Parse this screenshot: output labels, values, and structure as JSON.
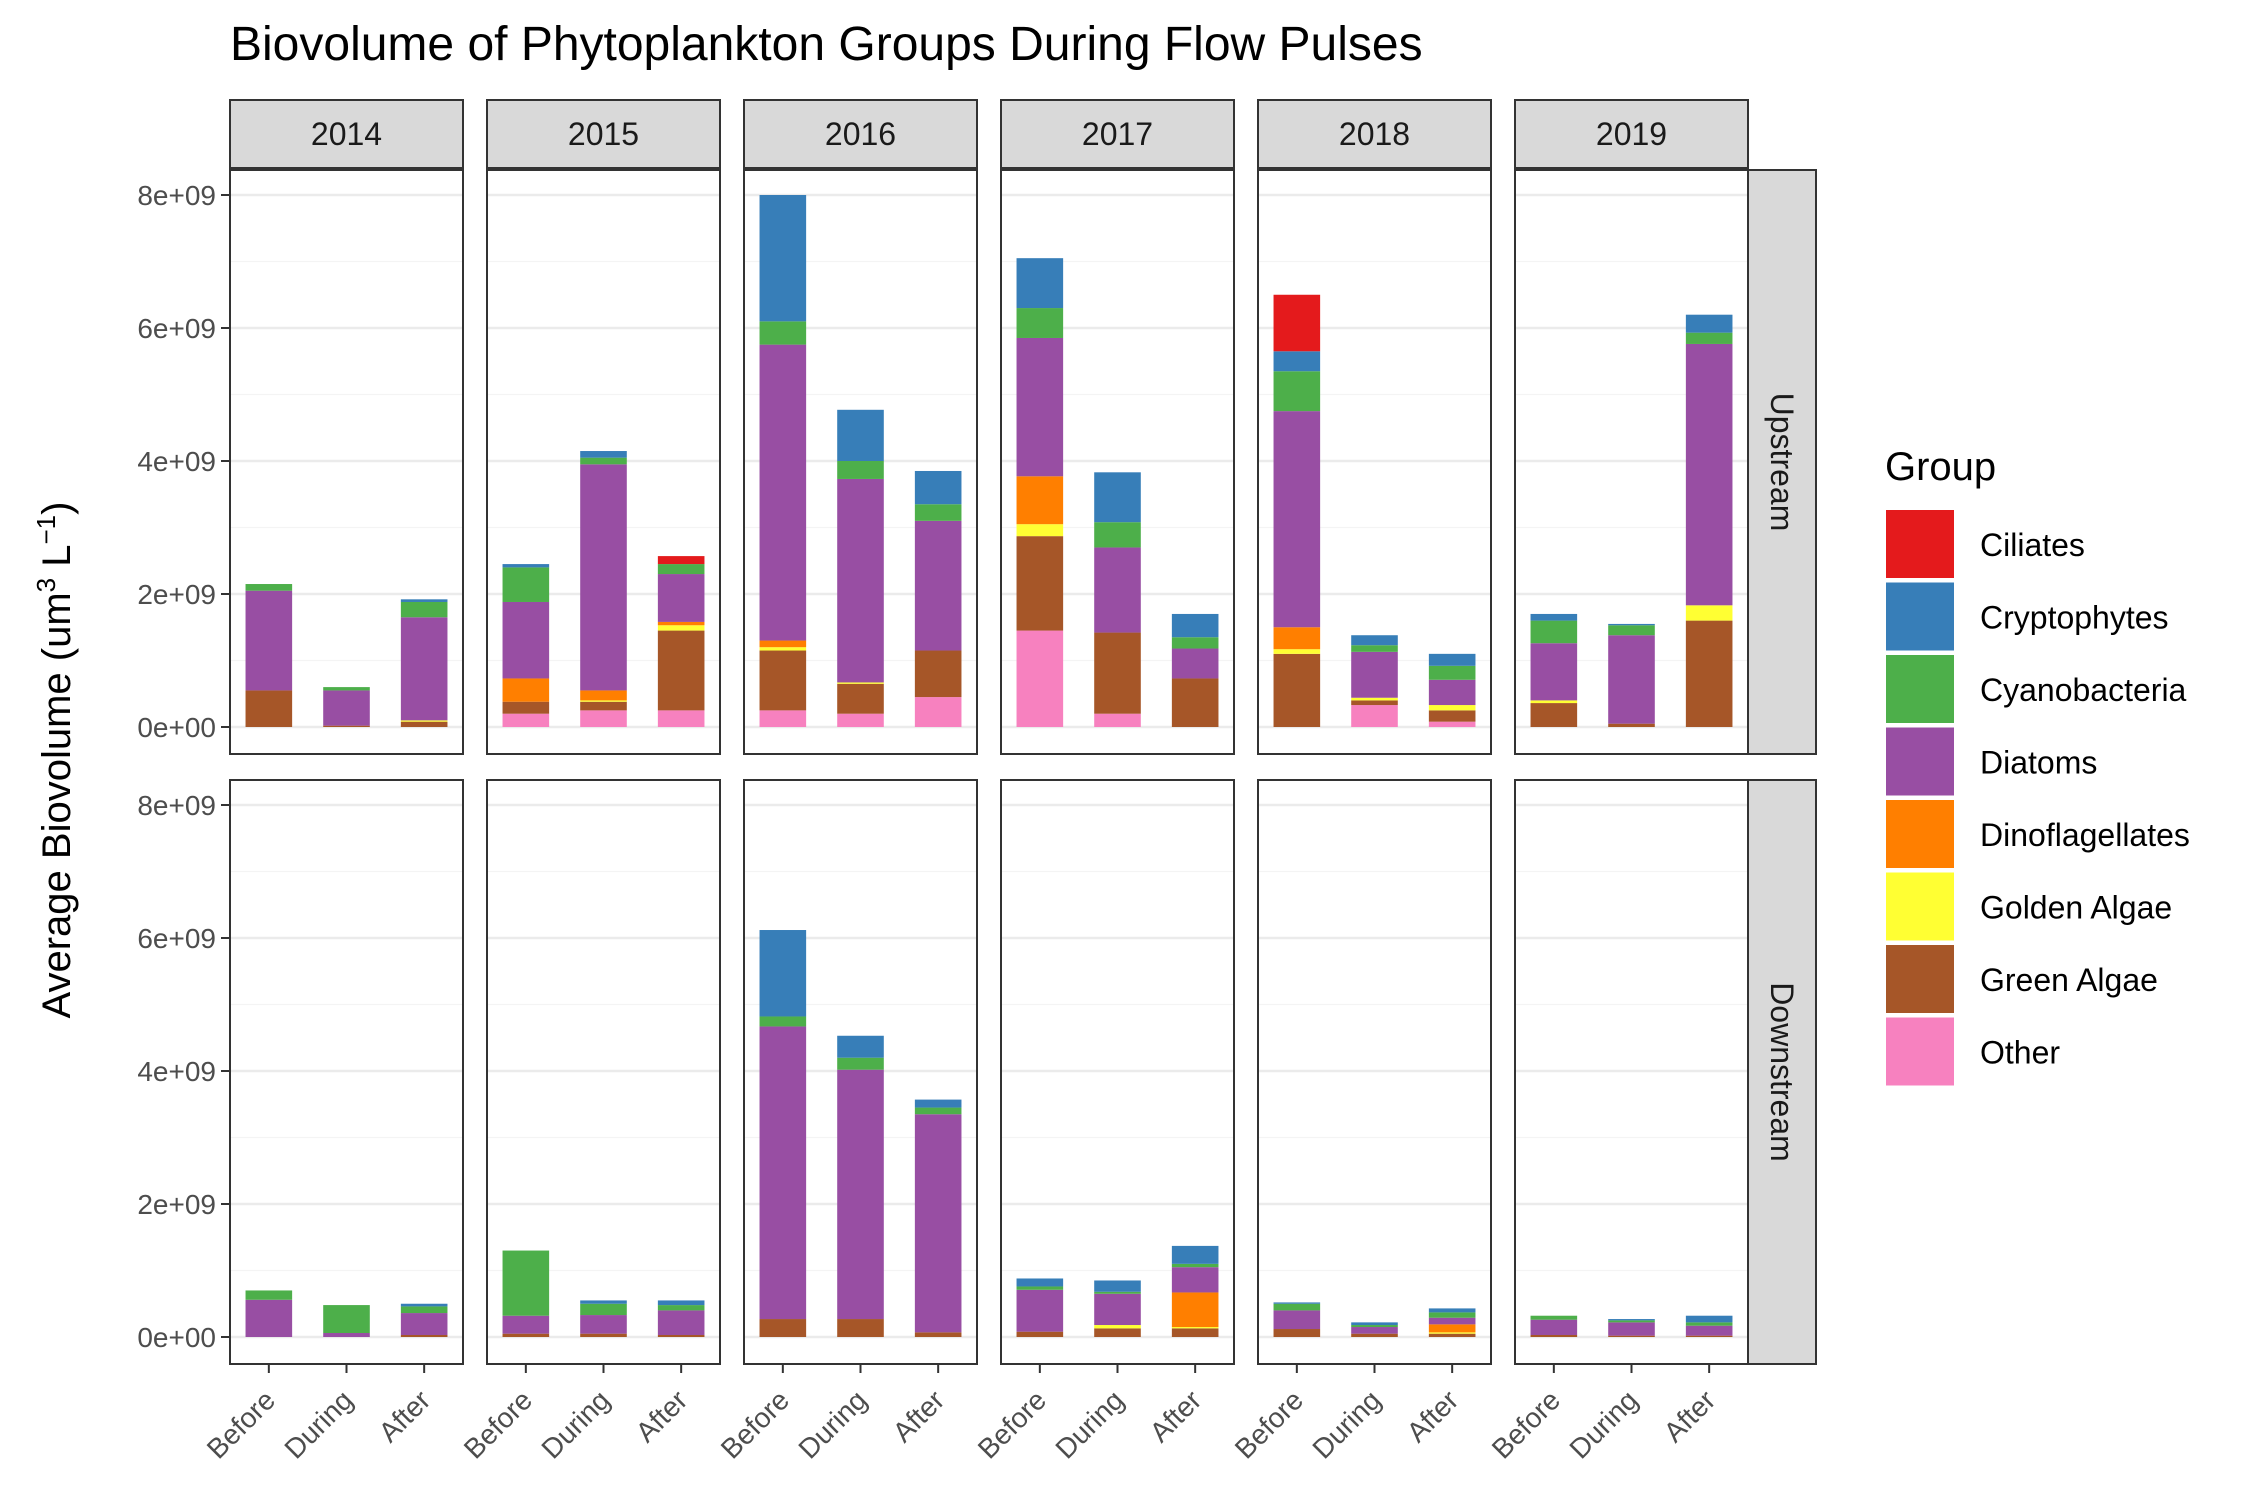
{
  "chart_data": {
    "type": "bar",
    "stacked": true,
    "title": "Biovolume of Phytoplankton Groups During Flow Pulses",
    "ylabel": "Average Biovolume (um³ L⁻¹)",
    "ylabel_parts": {
      "main": "Average Biovolume (um",
      "sup1": "3",
      "mid": " L",
      "sup2": "−1",
      "end": ")"
    },
    "ylim": [
      0,
      8000000000
    ],
    "yticks": [
      0,
      2000000000,
      4000000000,
      6000000000,
      8000000000
    ],
    "ytick_labels": [
      "0e+00",
      "2e+09",
      "4e+09",
      "6e+09",
      "8e+09"
    ],
    "grid": true,
    "legend_position": "right",
    "legend_title": "Group",
    "categories": [
      "Before",
      "During",
      "After"
    ],
    "groups": [
      "Ciliates",
      "Cryptophytes",
      "Cyanobacteria",
      "Diatoms",
      "Dinoflagellates",
      "Golden Algae",
      "Green Algae",
      "Other"
    ],
    "colors": {
      "Ciliates": "#E41A1C",
      "Cryptophytes": "#377EB8",
      "Cyanobacteria": "#4DAF4A",
      "Diatoms": "#984EA3",
      "Dinoflagellates": "#FF7F00",
      "Golden Algae": "#FFFF33",
      "Green Algae": "#A65628",
      "Other": "#F781BF"
    },
    "columns": [
      "2014",
      "2015",
      "2016",
      "2017",
      "2018",
      "2019"
    ],
    "rows": [
      "Upstream",
      "Downstream"
    ],
    "stack_order_bottom_to_top": [
      "Other",
      "Green Algae",
      "Golden Algae",
      "Dinoflagellates",
      "Diatoms",
      "Cyanobacteria",
      "Cryptophytes",
      "Ciliates"
    ],
    "panels": [
      {
        "row": "Upstream",
        "column": "2014",
        "bars": [
          {
            "x": "Before",
            "Other": 0,
            "Green Algae": 550000000,
            "Golden Algae": 0,
            "Dinoflagellates": 0,
            "Diatoms": 1500000000,
            "Cyanobacteria": 100000000,
            "Cryptophytes": 0,
            "Ciliates": 0
          },
          {
            "x": "During",
            "Other": 0,
            "Green Algae": 20000000,
            "Golden Algae": 0,
            "Dinoflagellates": 0,
            "Diatoms": 530000000,
            "Cyanobacteria": 50000000,
            "Cryptophytes": 0,
            "Ciliates": 0
          },
          {
            "x": "After",
            "Other": 0,
            "Green Algae": 80000000,
            "Golden Algae": 20000000,
            "Dinoflagellates": 0,
            "Diatoms": 1550000000,
            "Cyanobacteria": 230000000,
            "Cryptophytes": 40000000,
            "Ciliates": 0
          }
        ]
      },
      {
        "row": "Upstream",
        "column": "2015",
        "bars": [
          {
            "x": "Before",
            "Other": 200000000,
            "Green Algae": 180000000,
            "Golden Algae": 0,
            "Dinoflagellates": 350000000,
            "Diatoms": 1150000000,
            "Cyanobacteria": 520000000,
            "Cryptophytes": 50000000,
            "Ciliates": 0
          },
          {
            "x": "During",
            "Other": 250000000,
            "Green Algae": 130000000,
            "Golden Algae": 20000000,
            "Dinoflagellates": 150000000,
            "Diatoms": 3400000000,
            "Cyanobacteria": 100000000,
            "Cryptophytes": 100000000,
            "Ciliates": 0
          },
          {
            "x": "After",
            "Other": 250000000,
            "Green Algae": 1200000000,
            "Golden Algae": 80000000,
            "Dinoflagellates": 50000000,
            "Diatoms": 720000000,
            "Cyanobacteria": 150000000,
            "Cryptophytes": 0,
            "Ciliates": 120000000
          }
        ]
      },
      {
        "row": "Upstream",
        "column": "2016",
        "bars": [
          {
            "x": "Before",
            "Other": 250000000,
            "Green Algae": 900000000,
            "Golden Algae": 50000000,
            "Dinoflagellates": 100000000,
            "Diatoms": 4450000000,
            "Cyanobacteria": 350000000,
            "Cryptophytes": 1900000000,
            "Ciliates": 0
          },
          {
            "x": "During",
            "Other": 200000000,
            "Green Algae": 450000000,
            "Golden Algae": 20000000,
            "Dinoflagellates": 0,
            "Diatoms": 3060000000,
            "Cyanobacteria": 270000000,
            "Cryptophytes": 770000000,
            "Ciliates": 0
          },
          {
            "x": "After",
            "Other": 450000000,
            "Green Algae": 700000000,
            "Golden Algae": 0,
            "Dinoflagellates": 0,
            "Diatoms": 1950000000,
            "Cyanobacteria": 250000000,
            "Cryptophytes": 500000000,
            "Ciliates": 0
          }
        ]
      },
      {
        "row": "Upstream",
        "column": "2017",
        "bars": [
          {
            "x": "Before",
            "Other": 1450000000,
            "Green Algae": 1420000000,
            "Golden Algae": 180000000,
            "Dinoflagellates": 720000000,
            "Diatoms": 2080000000,
            "Cyanobacteria": 450000000,
            "Cryptophytes": 750000000,
            "Ciliates": 0
          },
          {
            "x": "During",
            "Other": 200000000,
            "Green Algae": 1220000000,
            "Golden Algae": 0,
            "Dinoflagellates": 0,
            "Diatoms": 1280000000,
            "Cyanobacteria": 380000000,
            "Cryptophytes": 750000000,
            "Ciliates": 0
          },
          {
            "x": "After",
            "Other": 0,
            "Green Algae": 730000000,
            "Golden Algae": 0,
            "Dinoflagellates": 0,
            "Diatoms": 450000000,
            "Cyanobacteria": 170000000,
            "Cryptophytes": 350000000,
            "Ciliates": 0
          }
        ]
      },
      {
        "row": "Upstream",
        "column": "2018",
        "bars": [
          {
            "x": "Before",
            "Other": 0,
            "Green Algae": 1100000000,
            "Golden Algae": 70000000,
            "Dinoflagellates": 330000000,
            "Diatoms": 3250000000,
            "Cyanobacteria": 600000000,
            "Cryptophytes": 300000000,
            "Ciliates": 850000000
          },
          {
            "x": "During",
            "Other": 330000000,
            "Green Algae": 70000000,
            "Golden Algae": 40000000,
            "Dinoflagellates": 0,
            "Diatoms": 690000000,
            "Cyanobacteria": 100000000,
            "Cryptophytes": 150000000,
            "Ciliates": 0
          },
          {
            "x": "After",
            "Other": 80000000,
            "Green Algae": 170000000,
            "Golden Algae": 80000000,
            "Dinoflagellates": 0,
            "Diatoms": 380000000,
            "Cyanobacteria": 210000000,
            "Cryptophytes": 180000000,
            "Ciliates": 0
          }
        ]
      },
      {
        "row": "Upstream",
        "column": "2019",
        "bars": [
          {
            "x": "Before",
            "Other": 0,
            "Green Algae": 360000000,
            "Golden Algae": 40000000,
            "Dinoflagellates": 0,
            "Diatoms": 860000000,
            "Cyanobacteria": 340000000,
            "Cryptophytes": 100000000,
            "Ciliates": 0
          },
          {
            "x": "During",
            "Other": 0,
            "Green Algae": 50000000,
            "Golden Algae": 0,
            "Dinoflagellates": 0,
            "Diatoms": 1330000000,
            "Cyanobacteria": 150000000,
            "Cryptophytes": 20000000,
            "Ciliates": 0
          },
          {
            "x": "After",
            "Other": 0,
            "Green Algae": 1600000000,
            "Golden Algae": 230000000,
            "Dinoflagellates": 0,
            "Diatoms": 3930000000,
            "Cyanobacteria": 170000000,
            "Cryptophytes": 270000000,
            "Ciliates": 0
          }
        ]
      },
      {
        "row": "Downstream",
        "column": "2014",
        "bars": [
          {
            "x": "Before",
            "Other": 0,
            "Green Algae": 0,
            "Golden Algae": 0,
            "Dinoflagellates": 0,
            "Diatoms": 560000000,
            "Cyanobacteria": 140000000,
            "Cryptophytes": 0,
            "Ciliates": 0
          },
          {
            "x": "During",
            "Other": 0,
            "Green Algae": 0,
            "Golden Algae": 0,
            "Dinoflagellates": 0,
            "Diatoms": 60000000,
            "Cyanobacteria": 420000000,
            "Cryptophytes": 0,
            "Ciliates": 0
          },
          {
            "x": "After",
            "Other": 0,
            "Green Algae": 30000000,
            "Golden Algae": 0,
            "Dinoflagellates": 0,
            "Diatoms": 330000000,
            "Cyanobacteria": 100000000,
            "Cryptophytes": 40000000,
            "Ciliates": 0
          }
        ]
      },
      {
        "row": "Downstream",
        "column": "2015",
        "bars": [
          {
            "x": "Before",
            "Other": 0,
            "Green Algae": 50000000,
            "Golden Algae": 0,
            "Dinoflagellates": 0,
            "Diatoms": 270000000,
            "Cyanobacteria": 980000000,
            "Cryptophytes": 0,
            "Ciliates": 0
          },
          {
            "x": "During",
            "Other": 0,
            "Green Algae": 50000000,
            "Golden Algae": 0,
            "Dinoflagellates": 0,
            "Diatoms": 280000000,
            "Cyanobacteria": 170000000,
            "Cryptophytes": 50000000,
            "Ciliates": 0
          },
          {
            "x": "After",
            "Other": 0,
            "Green Algae": 30000000,
            "Golden Algae": 0,
            "Dinoflagellates": 0,
            "Diatoms": 370000000,
            "Cyanobacteria": 80000000,
            "Cryptophytes": 70000000,
            "Ciliates": 0
          }
        ]
      },
      {
        "row": "Downstream",
        "column": "2016",
        "bars": [
          {
            "x": "Before",
            "Other": 0,
            "Green Algae": 270000000,
            "Golden Algae": 0,
            "Dinoflagellates": 0,
            "Diatoms": 4400000000,
            "Cyanobacteria": 150000000,
            "Cryptophytes": 1300000000,
            "Ciliates": 0
          },
          {
            "x": "During",
            "Other": 0,
            "Green Algae": 270000000,
            "Golden Algae": 0,
            "Dinoflagellates": 0,
            "Diatoms": 3750000000,
            "Cyanobacteria": 180000000,
            "Cryptophytes": 330000000,
            "Ciliates": 0
          },
          {
            "x": "After",
            "Other": 0,
            "Green Algae": 70000000,
            "Golden Algae": 0,
            "Dinoflagellates": 0,
            "Diatoms": 3280000000,
            "Cyanobacteria": 100000000,
            "Cryptophytes": 120000000,
            "Ciliates": 0
          }
        ]
      },
      {
        "row": "Downstream",
        "column": "2017",
        "bars": [
          {
            "x": "Before",
            "Other": 0,
            "Green Algae": 80000000,
            "Golden Algae": 0,
            "Dinoflagellates": 0,
            "Diatoms": 630000000,
            "Cyanobacteria": 50000000,
            "Cryptophytes": 120000000,
            "Ciliates": 0
          },
          {
            "x": "During",
            "Other": 0,
            "Green Algae": 130000000,
            "Golden Algae": 50000000,
            "Dinoflagellates": 0,
            "Diatoms": 470000000,
            "Cyanobacteria": 30000000,
            "Cryptophytes": 170000000,
            "Ciliates": 0
          },
          {
            "x": "After",
            "Other": 0,
            "Green Algae": 130000000,
            "Golden Algae": 20000000,
            "Dinoflagellates": 520000000,
            "Diatoms": 380000000,
            "Cyanobacteria": 50000000,
            "Cryptophytes": 270000000,
            "Ciliates": 0
          }
        ]
      },
      {
        "row": "Downstream",
        "column": "2018",
        "bars": [
          {
            "x": "Before",
            "Other": 0,
            "Green Algae": 120000000,
            "Golden Algae": 0,
            "Dinoflagellates": 0,
            "Diatoms": 280000000,
            "Cyanobacteria": 100000000,
            "Cryptophytes": 20000000,
            "Ciliates": 0
          },
          {
            "x": "During",
            "Other": 0,
            "Green Algae": 50000000,
            "Golden Algae": 0,
            "Dinoflagellates": 0,
            "Diatoms": 100000000,
            "Cyanobacteria": 30000000,
            "Cryptophytes": 40000000,
            "Ciliates": 0
          },
          {
            "x": "After",
            "Other": 0,
            "Green Algae": 50000000,
            "Golden Algae": 20000000,
            "Dinoflagellates": 120000000,
            "Diatoms": 100000000,
            "Cyanobacteria": 80000000,
            "Cryptophytes": 60000000,
            "Ciliates": 0
          }
        ]
      },
      {
        "row": "Downstream",
        "column": "2019",
        "bars": [
          {
            "x": "Before",
            "Other": 0,
            "Green Algae": 30000000,
            "Golden Algae": 0,
            "Dinoflagellates": 0,
            "Diatoms": 230000000,
            "Cyanobacteria": 60000000,
            "Cryptophytes": 0,
            "Ciliates": 0
          },
          {
            "x": "During",
            "Other": 0,
            "Green Algae": 20000000,
            "Golden Algae": 0,
            "Dinoflagellates": 0,
            "Diatoms": 200000000,
            "Cyanobacteria": 30000000,
            "Cryptophytes": 20000000,
            "Ciliates": 0
          },
          {
            "x": "After",
            "Other": 0,
            "Green Algae": 20000000,
            "Golden Algae": 0,
            "Dinoflagellates": 0,
            "Diatoms": 150000000,
            "Cyanobacteria": 50000000,
            "Cryptophytes": 100000000,
            "Ciliates": 0
          }
        ]
      }
    ]
  }
}
